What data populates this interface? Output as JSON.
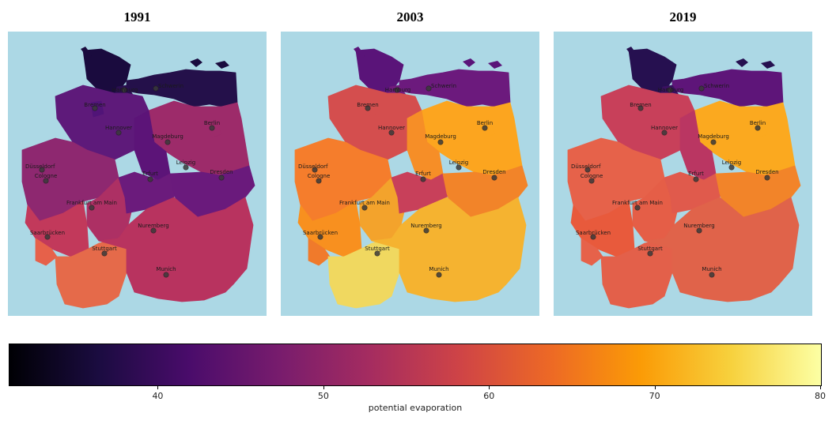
{
  "panels": [
    {
      "year": "1991",
      "regions": {
        "SH": "#1a0b3e",
        "MV": "#24104a",
        "HH": "#2a0f50",
        "HB": "#511478",
        "NI": "#5e1a7a",
        "BB": "#9d2b6a",
        "BE": "#9d2b6a",
        "ST": "#5c1478",
        "NW": "#8e2870",
        "HE": "#ad3064",
        "TH": "#6b1b7c",
        "SN": "#6a1a7c",
        "RP": "#c2395b",
        "SL": "#e6614a",
        "BW": "#e56a4a",
        "BY": "#b8335f"
      }
    },
    {
      "year": "2003",
      "regions": {
        "SH": "#5a1479",
        "MV": "#6c1a7d",
        "HH": "#701b7c",
        "NI": "#d44e4e",
        "HB": "#d44e4e",
        "BB": "#fca51f",
        "BE": "#fca51f",
        "ST": "#f68e27",
        "NW": "#f57d2c",
        "HE": "#f3a32c",
        "TH": "#c8405a",
        "SN": "#f28429",
        "RP": "#f8901f",
        "SL": "#f07a2b",
        "BW": "#f0d860",
        "BY": "#f5b330"
      }
    },
    {
      "year": "2019",
      "regions": {
        "SH": "#261050",
        "MV": "#5e1579",
        "HH": "#3a1061",
        "NI": "#c8405a",
        "HB": "#c8405a",
        "BB": "#fba91f",
        "BE": "#fba91f",
        "ST": "#ba3662",
        "NW": "#e6624a",
        "HE": "#e55e47",
        "TH": "#e05a4c",
        "SN": "#f28429",
        "RP": "#e85a3c",
        "SL": "#e6624a",
        "BW": "#e3604a",
        "BY": "#e0634a"
      }
    }
  ],
  "cities": [
    "Hamburg",
    "Schwerin",
    "Bremen",
    "Hannover",
    "Berlin",
    "Magdeburg",
    "Düsseldorf",
    "Cologne",
    "Leipzig",
    "Erfurt",
    "Dresden",
    "Frankfurt am Main",
    "Nuremberg",
    "Saarbrücken",
    "Stuttgart",
    "Munich"
  ],
  "colorbar": {
    "label": "potential evaporation",
    "colormap": "inferno",
    "min": 31,
    "max": 80,
    "ticks": [
      "40",
      "50",
      "60",
      "70",
      "80"
    ]
  },
  "colors": {
    "water": "#acd8e5"
  }
}
